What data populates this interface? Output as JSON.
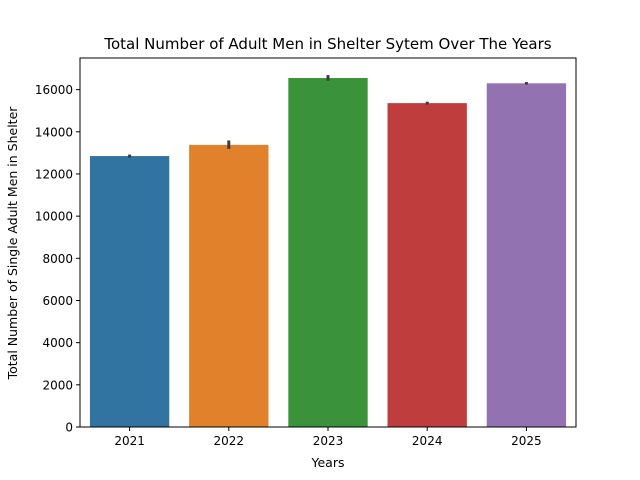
{
  "chart_data": {
    "type": "bar",
    "title": "Total Number of Adult Men in Shelter Sytem Over The Years",
    "xlabel": "Years",
    "ylabel": "Total Number of Single Adult Men in Shelter",
    "categories": [
      "2021",
      "2022",
      "2023",
      "2024",
      "2025"
    ],
    "values": [
      12850,
      13380,
      16550,
      15360,
      16300
    ],
    "error_bars": [
      {
        "low": 12770,
        "high": 12920
      },
      {
        "low": 13190,
        "high": 13590
      },
      {
        "low": 16420,
        "high": 16690
      },
      {
        "low": 15290,
        "high": 15430
      },
      {
        "low": 16240,
        "high": 16360
      }
    ],
    "colors": [
      "#3274a1",
      "#e1812c",
      "#3a923a",
      "#c03d3e",
      "#9372b2"
    ],
    "ylim": [
      0,
      17500
    ],
    "yticks": [
      0,
      2000,
      4000,
      6000,
      8000,
      10000,
      12000,
      14000,
      16000
    ],
    "grid": false,
    "legend": "none"
  }
}
